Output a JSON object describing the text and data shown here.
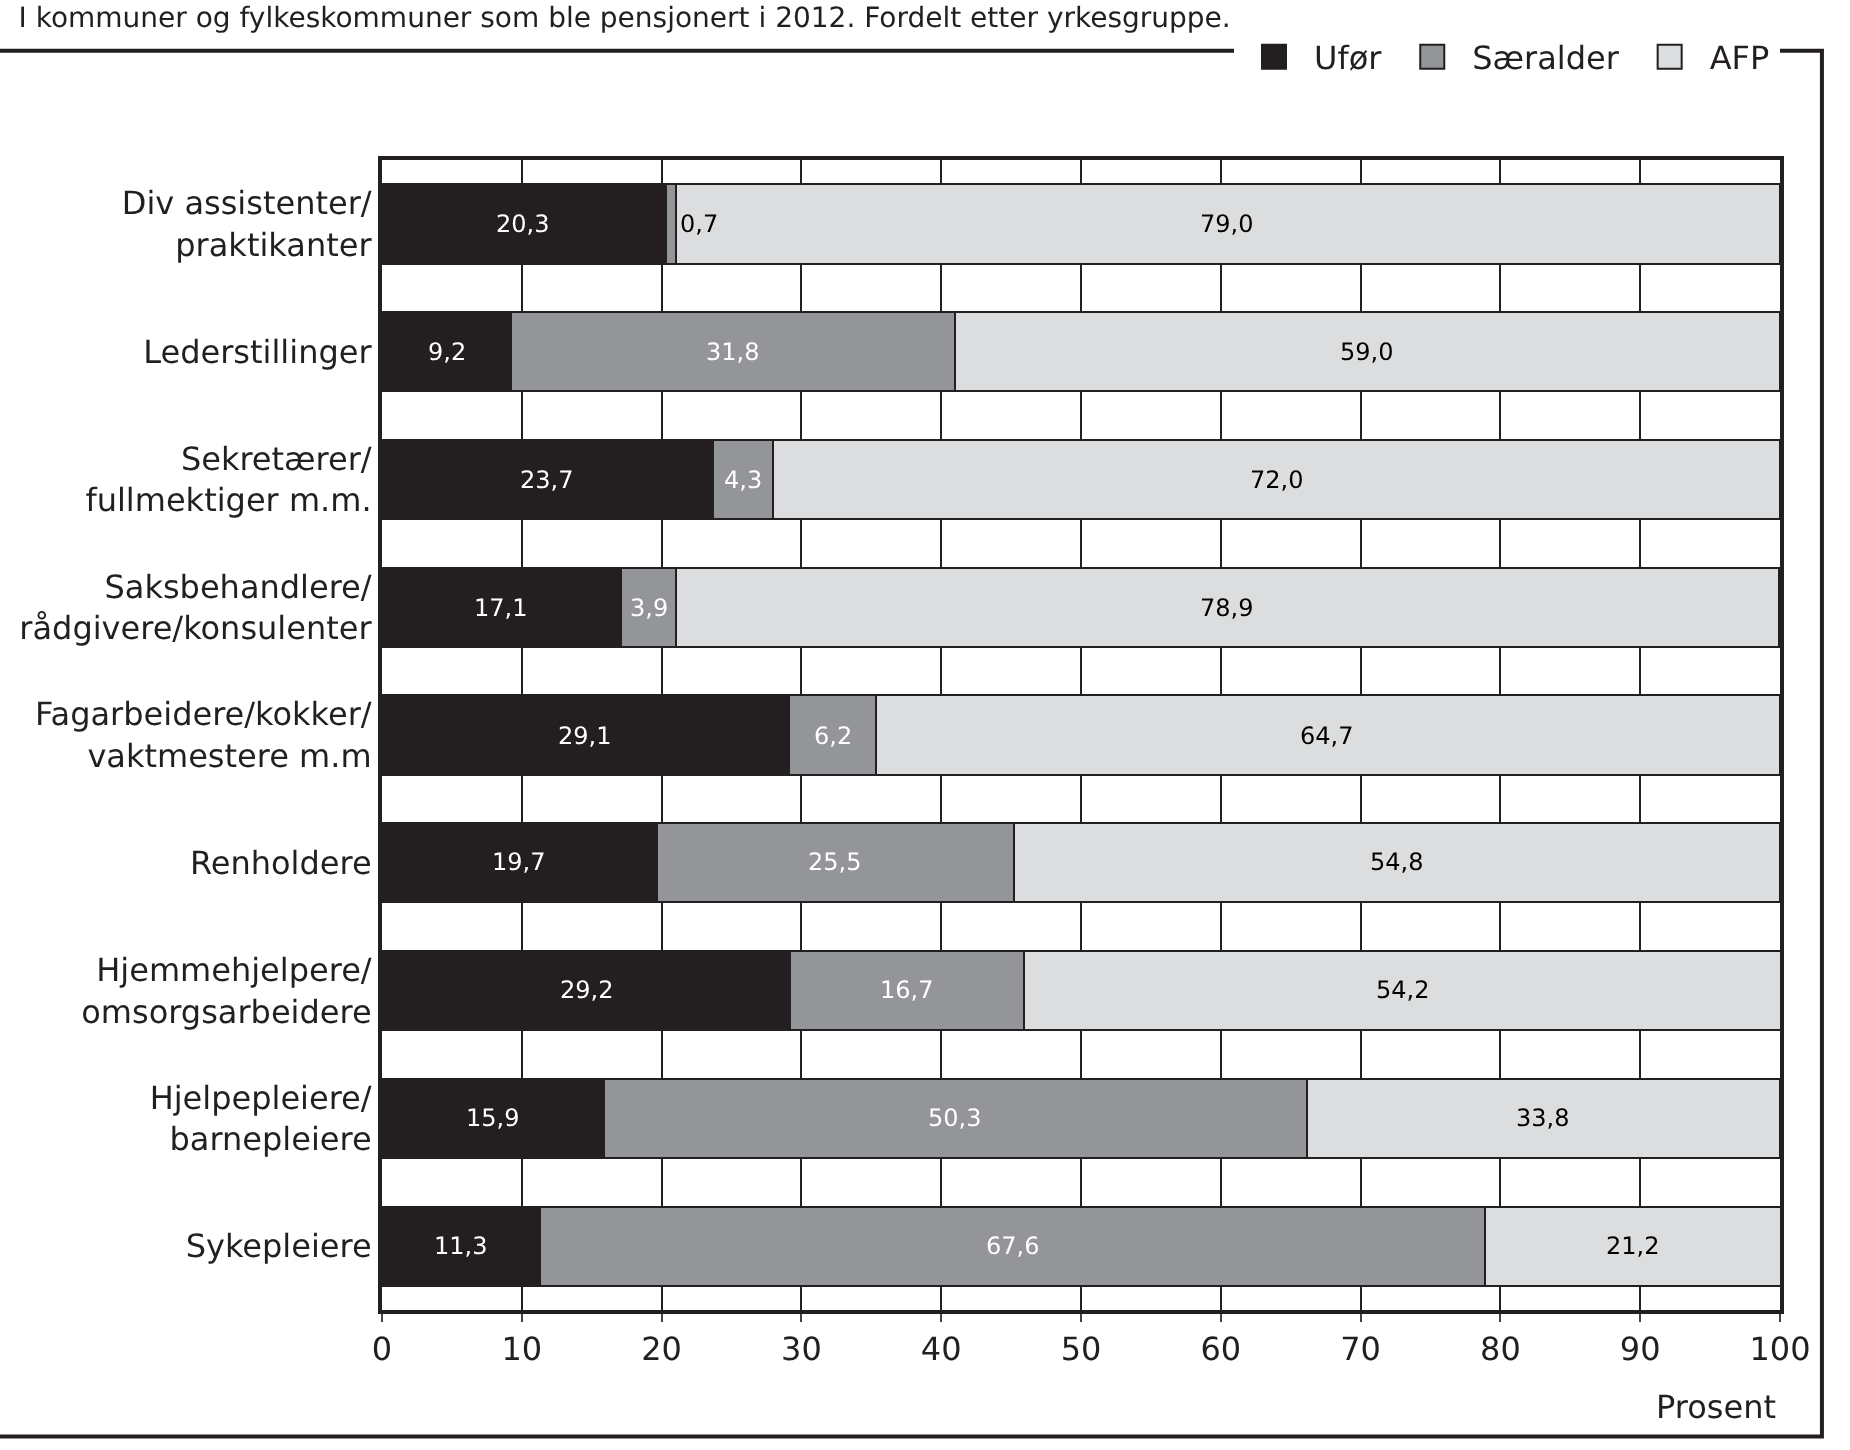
{
  "chart_data": {
    "type": "bar",
    "orientation": "horizontal",
    "stacked": true,
    "title": "I kommuner og fylkeskommuner som ble pensjonert i 2012. Fordelt etter yrkesgruppe.",
    "xlabel": "Prosent",
    "categories": [
      "Div assistenter/\npraktikanter",
      "Lederstillinger",
      "Sekretærer/\nfullmektiger m.m.",
      "Saksbehandlere/\nrådgivere/konsulenter",
      "Fagarbeidere/kokker/\nvaktmestere m.m",
      "Renholdere",
      "Hjemmehjelpere/\nomsorgsarbeidere",
      "Hjelpepleiere/\nbarnepleiere",
      "Sykepleiere"
    ],
    "series": [
      {
        "name": "Ufør",
        "color": "#231f20",
        "values": [
          20.3,
          9.2,
          23.7,
          17.1,
          29.1,
          19.7,
          29.2,
          15.9,
          11.3
        ],
        "value_labels": [
          "20,3",
          "9,2",
          "23,7",
          "17,1",
          "29,1",
          "19,7",
          "29,2",
          "15,9",
          "11,3"
        ]
      },
      {
        "name": "Særalder",
        "color": "#939598",
        "values": [
          0.7,
          31.8,
          4.3,
          3.9,
          6.2,
          25.5,
          16.7,
          50.3,
          67.6
        ],
        "value_labels": [
          "0,7",
          "31,8",
          "4,3",
          "3,9",
          "6,2",
          "25,5",
          "16,7",
          "50,3",
          "67,6"
        ]
      },
      {
        "name": "AFP",
        "color": "#dcddde",
        "values": [
          79.0,
          59.0,
          72.0,
          78.9,
          64.7,
          54.8,
          54.2,
          33.8,
          21.2
        ],
        "value_labels": [
          "79,0",
          "59,0",
          "72,0",
          "78,9",
          "64,7",
          "54,8",
          "54,2",
          "33,8",
          "21,2"
        ]
      }
    ],
    "xlim": [
      0,
      100
    ],
    "xticks": [
      0,
      10,
      20,
      30,
      40,
      50,
      60,
      70,
      80,
      90,
      100
    ],
    "grid": "x",
    "legend": "top right"
  }
}
